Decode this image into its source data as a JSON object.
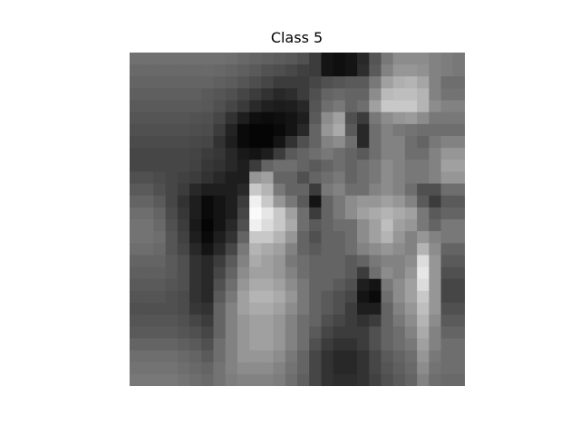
{
  "figure": {
    "title": "Class 5"
  },
  "chart_data": {
    "type": "heatmap",
    "title": "Class 5",
    "colormap": "gray",
    "rows": 28,
    "cols": 28,
    "values": [
      [
        112,
        112,
        112,
        112,
        112,
        112,
        112,
        112,
        110,
        104,
        100,
        96,
        92,
        88,
        80,
        60,
        20,
        15,
        20,
        40,
        85,
        120,
        140,
        140,
        140,
        130,
        125,
        120
      ],
      [
        105,
        105,
        105,
        105,
        105,
        105,
        106,
        104,
        100,
        95,
        90,
        82,
        78,
        72,
        64,
        60,
        20,
        15,
        20,
        45,
        90,
        130,
        150,
        150,
        145,
        130,
        125,
        120
      ],
      [
        100,
        100,
        100,
        100,
        100,
        100,
        100,
        96,
        92,
        85,
        78,
        70,
        60,
        60,
        60,
        70,
        80,
        85,
        90,
        90,
        120,
        160,
        175,
        180,
        165,
        130,
        110,
        110
      ],
      [
        95,
        95,
        95,
        95,
        95,
        95,
        90,
        86,
        80,
        70,
        60,
        50,
        40,
        45,
        60,
        80,
        100,
        105,
        100,
        100,
        140,
        185,
        190,
        190,
        180,
        130,
        115,
        115
      ],
      [
        90,
        90,
        90,
        90,
        90,
        90,
        88,
        80,
        70,
        58,
        42,
        32,
        28,
        30,
        40,
        85,
        110,
        120,
        100,
        110,
        160,
        200,
        200,
        200,
        180,
        140,
        130,
        130
      ],
      [
        85,
        85,
        85,
        85,
        85,
        82,
        80,
        70,
        50,
        30,
        15,
        12,
        15,
        20,
        30,
        90,
        140,
        160,
        80,
        60,
        120,
        140,
        150,
        155,
        140,
        120,
        120,
        120
      ],
      [
        80,
        80,
        80,
        80,
        80,
        78,
        76,
        60,
        35,
        10,
        5,
        5,
        10,
        20,
        40,
        100,
        150,
        170,
        90,
        40,
        110,
        130,
        120,
        115,
        110,
        110,
        110,
        110
      ],
      [
        75,
        75,
        75,
        75,
        75,
        72,
        70,
        50,
        30,
        10,
        5,
        5,
        20,
        50,
        80,
        100,
        130,
        140,
        110,
        40,
        110,
        130,
        130,
        110,
        100,
        120,
        130,
        130
      ],
      [
        70,
        70,
        70,
        70,
        70,
        68,
        60,
        55,
        40,
        25,
        20,
        30,
        60,
        90,
        100,
        110,
        120,
        110,
        100,
        90,
        110,
        130,
        130,
        110,
        110,
        130,
        150,
        150
      ],
      [
        70,
        70,
        70,
        70,
        70,
        66,
        55,
        50,
        40,
        30,
        60,
        100,
        110,
        110,
        100,
        90,
        100,
        110,
        100,
        110,
        120,
        140,
        130,
        120,
        120,
        130,
        160,
        160
      ],
      [
        80,
        80,
        75,
        70,
        65,
        60,
        50,
        40,
        30,
        30,
        150,
        160,
        100,
        100,
        80,
        100,
        110,
        120,
        100,
        110,
        120,
        140,
        130,
        120,
        120,
        130,
        150,
        150
      ],
      [
        90,
        90,
        80,
        70,
        60,
        40,
        30,
        30,
        30,
        40,
        200,
        180,
        120,
        100,
        100,
        60,
        120,
        130,
        110,
        110,
        130,
        140,
        130,
        110,
        80,
        80,
        110,
        110
      ],
      [
        100,
        100,
        90,
        70,
        50,
        30,
        10,
        20,
        30,
        60,
        240,
        200,
        150,
        120,
        90,
        20,
        100,
        120,
        140,
        150,
        150,
        160,
        150,
        130,
        90,
        60,
        90,
        90
      ],
      [
        110,
        110,
        100,
        75,
        55,
        30,
        10,
        20,
        30,
        70,
        250,
        230,
        200,
        160,
        110,
        60,
        100,
        120,
        140,
        160,
        170,
        180,
        170,
        160,
        120,
        90,
        100,
        100
      ],
      [
        115,
        115,
        105,
        80,
        60,
        25,
        5,
        20,
        40,
        80,
        240,
        220,
        200,
        170,
        110,
        90,
        100,
        110,
        110,
        140,
        160,
        190,
        160,
        150,
        120,
        100,
        120,
        120
      ],
      [
        115,
        115,
        110,
        85,
        65,
        30,
        10,
        30,
        50,
        100,
        200,
        200,
        180,
        150,
        100,
        80,
        100,
        100,
        110,
        140,
        160,
        180,
        150,
        130,
        150,
        130,
        120,
        120
      ],
      [
        110,
        110,
        105,
        85,
        70,
        40,
        20,
        40,
        70,
        120,
        180,
        170,
        160,
        130,
        100,
        90,
        100,
        100,
        110,
        130,
        140,
        150,
        140,
        130,
        180,
        140,
        100,
        100
      ],
      [
        100,
        100,
        100,
        90,
        80,
        50,
        40,
        60,
        90,
        130,
        170,
        160,
        150,
        120,
        110,
        100,
        100,
        100,
        90,
        100,
        120,
        130,
        130,
        140,
        220,
        150,
        90,
        90
      ],
      [
        95,
        95,
        95,
        90,
        80,
        50,
        40,
        70,
        100,
        140,
        160,
        160,
        150,
        130,
        110,
        100,
        100,
        100,
        90,
        60,
        110,
        140,
        130,
        150,
        230,
        150,
        80,
        80
      ],
      [
        90,
        90,
        90,
        85,
        80,
        50,
        40,
        80,
        110,
        150,
        170,
        170,
        160,
        140,
        120,
        100,
        100,
        90,
        80,
        30,
        20,
        120,
        140,
        160,
        220,
        150,
        70,
        70
      ],
      [
        85,
        85,
        85,
        80,
        75,
        50,
        40,
        90,
        120,
        160,
        180,
        180,
        170,
        150,
        120,
        100,
        90,
        80,
        70,
        20,
        10,
        110,
        140,
        160,
        200,
        150,
        70,
        70
      ],
      [
        80,
        80,
        80,
        80,
        75,
        55,
        50,
        100,
        130,
        160,
        170,
        170,
        160,
        140,
        120,
        100,
        90,
        80,
        60,
        30,
        30,
        100,
        130,
        150,
        190,
        150,
        80,
        80
      ],
      [
        85,
        85,
        85,
        85,
        80,
        70,
        60,
        100,
        130,
        150,
        160,
        160,
        150,
        130,
        110,
        100,
        80,
        70,
        60,
        50,
        60,
        100,
        120,
        140,
        180,
        140,
        90,
        90
      ],
      [
        90,
        90,
        90,
        90,
        85,
        80,
        70,
        100,
        130,
        150,
        160,
        160,
        150,
        130,
        110,
        90,
        70,
        60,
        60,
        60,
        80,
        100,
        110,
        130,
        170,
        130,
        100,
        100
      ],
      [
        100,
        100,
        100,
        100,
        95,
        90,
        80,
        110,
        130,
        150,
        160,
        160,
        150,
        130,
        110,
        80,
        60,
        50,
        50,
        60,
        80,
        100,
        110,
        120,
        160,
        130,
        110,
        110
      ],
      [
        110,
        110,
        110,
        110,
        105,
        100,
        90,
        110,
        130,
        150,
        150,
        150,
        140,
        120,
        100,
        70,
        50,
        40,
        40,
        50,
        70,
        90,
        100,
        110,
        150,
        120,
        110,
        110
      ],
      [
        115,
        115,
        115,
        115,
        110,
        105,
        100,
        115,
        130,
        140,
        140,
        140,
        130,
        115,
        100,
        70,
        50,
        40,
        40,
        50,
        70,
        85,
        95,
        105,
        140,
        115,
        110,
        110
      ],
      [
        120,
        120,
        120,
        120,
        115,
        110,
        105,
        115,
        125,
        130,
        130,
        130,
        125,
        110,
        95,
        70,
        50,
        45,
        45,
        50,
        65,
        80,
        90,
        100,
        130,
        110,
        105,
        105
      ]
    ]
  }
}
